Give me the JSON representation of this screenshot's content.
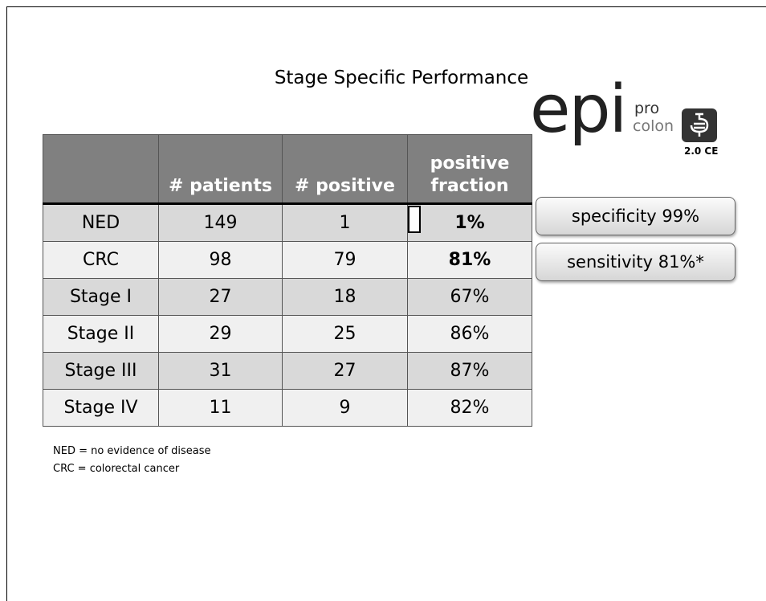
{
  "title": "Stage Specific Performance",
  "logo": {
    "brand": "epi",
    "pro": "pro",
    "colon": "colon",
    "version": "2.0 CE"
  },
  "table": {
    "header": [
      "# patients",
      "# positive",
      "positive fraction"
    ],
    "rows": [
      [
        "NED",
        "149",
        "1",
        "1%"
      ],
      [
        "CRC",
        "98",
        "79",
        "81%"
      ],
      [
        "Stage I",
        "27",
        "18",
        "67%"
      ],
      [
        "Stage II",
        "29",
        "25",
        "86%"
      ],
      [
        "Stage III",
        "31",
        "27",
        "87%"
      ],
      [
        "Stage IV",
        "11",
        "9",
        "82%"
      ]
    ]
  },
  "callouts": [
    "specificity 99%",
    "sensitivity 81%*"
  ],
  "footnotes": [
    "NED = no evidence of disease",
    "CRC = colorectal cancer"
  ]
}
